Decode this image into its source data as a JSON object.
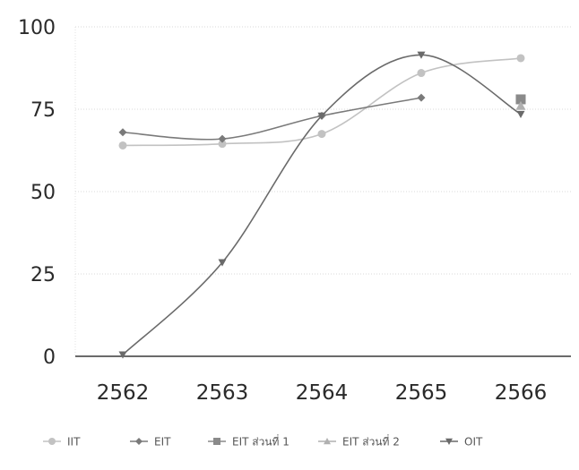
{
  "chart_data": {
    "type": "line",
    "categories": [
      "2562",
      "2563",
      "2564",
      "2565",
      "2566"
    ],
    "ylim": [
      0,
      100
    ],
    "yticks": [
      0,
      25,
      50,
      75,
      100
    ],
    "grid": true,
    "legend_position": "bottom",
    "series": [
      {
        "name": "IIT",
        "values": [
          64,
          64.5,
          67.5,
          86,
          90.5
        ],
        "color": "#c2c2c2",
        "marker": "circle"
      },
      {
        "name": "EIT",
        "values": [
          68,
          66,
          73,
          78.5,
          null
        ],
        "color": "#7a7a7a",
        "marker": "diamond"
      },
      {
        "name": "EIT ส่วนที่ 1",
        "values": [
          null,
          null,
          null,
          null,
          78
        ],
        "color": "#8a8a8a",
        "marker": "square"
      },
      {
        "name": "EIT ส่วนที่ 2",
        "values": [
          null,
          null,
          null,
          null,
          76
        ],
        "color": "#b0b0b0",
        "marker": "triangle"
      },
      {
        "name": "OIT",
        "values": [
          0.5,
          28.5,
          73,
          91.5,
          73.5
        ],
        "color": "#6a6a6a",
        "marker": "triangle-down"
      }
    ]
  }
}
